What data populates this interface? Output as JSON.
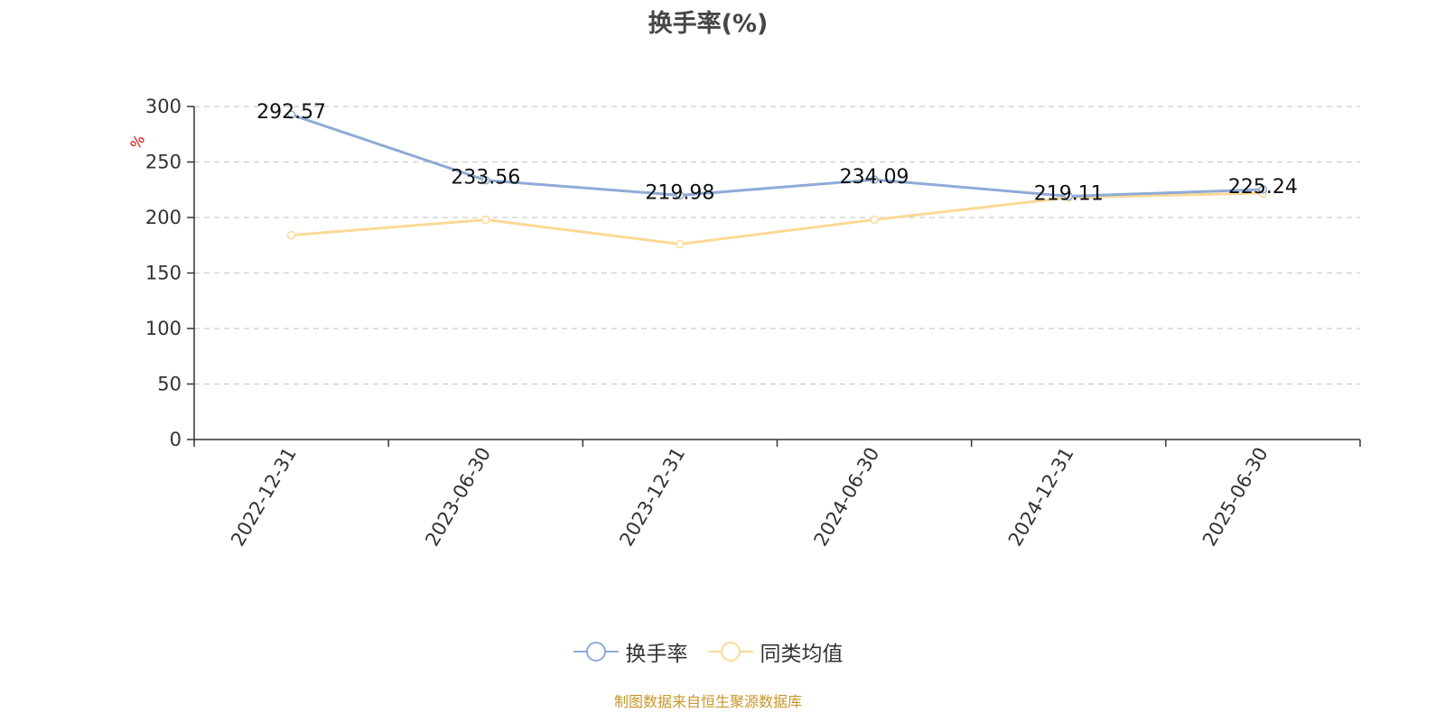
{
  "chart_data": {
    "type": "line",
    "title": "换手率(%)",
    "ylabel": "%",
    "categories": [
      "2022-12-31",
      "2023-06-30",
      "2023-12-31",
      "2024-06-30",
      "2024-12-31",
      "2025-06-30"
    ],
    "ylim": [
      0,
      300
    ],
    "yticks": [
      0,
      50,
      100,
      150,
      200,
      250,
      300
    ],
    "grid": true,
    "legend_position": "bottom",
    "series": [
      {
        "name": "换手率",
        "values": [
          292.57,
          233.56,
          219.98,
          234.09,
          219.11,
          225.24
        ],
        "color": "#8eabd6",
        "labels": [
          "292.57",
          "233.56",
          "219.98",
          "234.09",
          "219.11",
          "225.24"
        ]
      },
      {
        "name": "同类均值",
        "values": [
          184,
          198,
          176,
          198,
          218,
          222
        ],
        "color": "#fcd997"
      }
    ]
  },
  "source_note": "制图数据来自恒生聚源数据库",
  "colors": {
    "axis": "#333333",
    "grid": "#cccccc",
    "ylabel": "#e60000",
    "source": "#c8962a"
  }
}
